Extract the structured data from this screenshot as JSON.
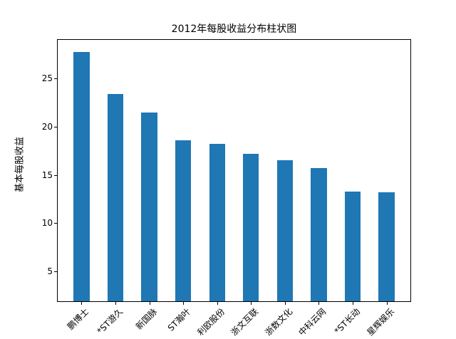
{
  "figure": {
    "title": "2012年每股收益分布柱状图",
    "ylabel": "基本每股收益"
  },
  "chart_data": {
    "type": "bar",
    "title": "2012年每股收益分布柱状图",
    "xlabel": "",
    "ylabel": "基本每股收益",
    "categories": [
      "鹏博士",
      "*ST游久",
      "新国脉",
      "ST瀚叶",
      "利欧股份",
      "浙文互联",
      "浙数文化",
      "中科云网",
      "*ST长动",
      "星辉娱乐"
    ],
    "values": [
      27.8,
      23.4,
      21.5,
      18.6,
      18.2,
      17.2,
      16.5,
      15.7,
      13.3,
      13.2
    ],
    "yticks": [
      5,
      10,
      15,
      20,
      25
    ],
    "ylim": [
      1.9,
      29.1
    ],
    "xtick_rotation_deg": 45,
    "bar_color": "#1f77b4",
    "grid": false,
    "legend": null,
    "background_color": "#ffffff"
  }
}
